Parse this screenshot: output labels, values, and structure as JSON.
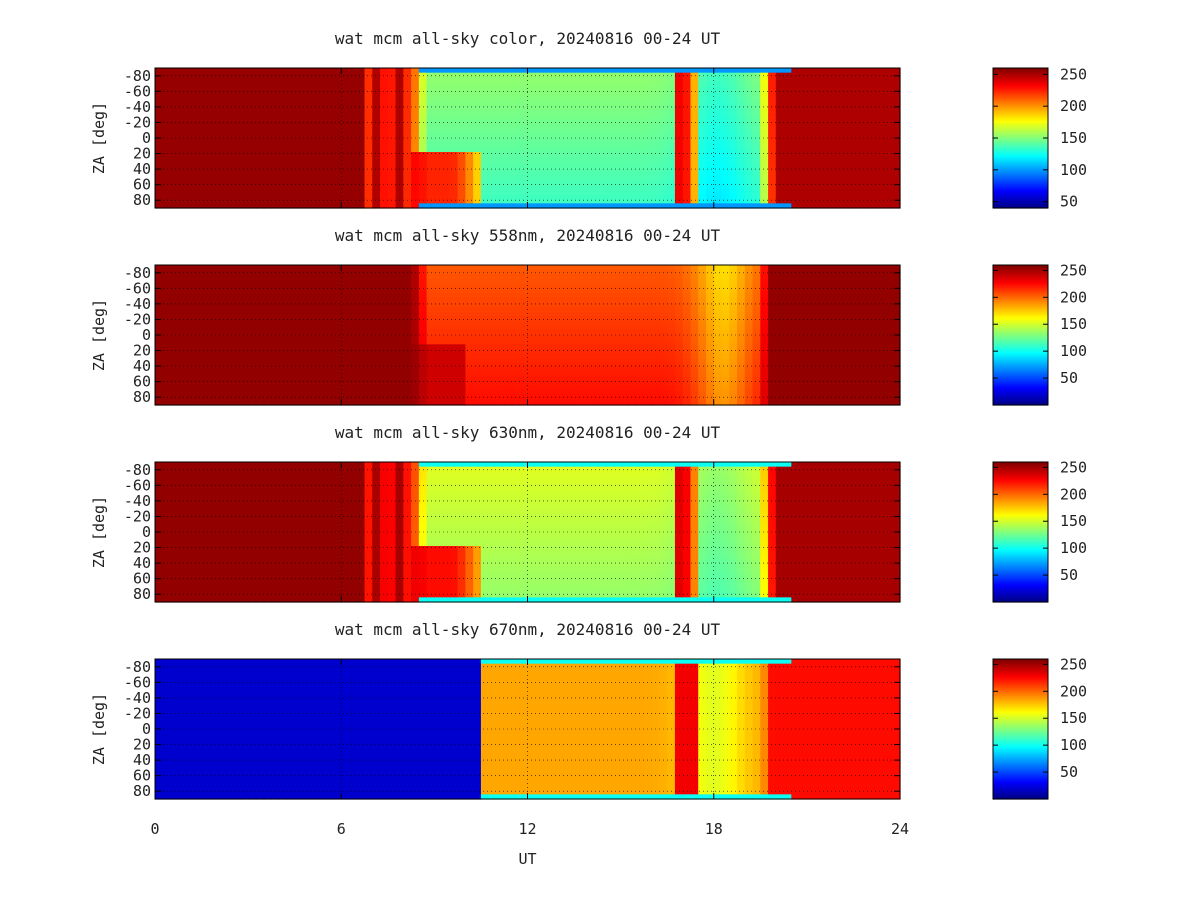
{
  "chart_data": [
    {
      "type": "heatmap",
      "title": "wat mcm all-sky color, 20240816 00-24 UT",
      "ylabel": "ZA [deg]",
      "xlim": [
        0,
        24
      ],
      "ylim": [
        -90,
        90
      ],
      "xticks": [
        "0",
        "6",
        "12",
        "18",
        "24"
      ],
      "yticks": [
        "-80",
        "-60",
        "-40",
        "-20",
        "0",
        "20",
        "40",
        "60",
        "80"
      ],
      "grid": true,
      "colorbar": {
        "range": [
          40,
          260
        ],
        "ticks": [
          "50",
          "100",
          "150",
          "200",
          "250"
        ]
      },
      "description_values": {
        "night_start_ut": 6.8,
        "day_start_ut": 8.5,
        "day_end_ut": 20.0,
        "background_night_value": 255,
        "typical_day_value": 145
      }
    },
    {
      "type": "heatmap",
      "title": "wat mcm all-sky 558nm, 20240816 00-24 UT",
      "ylabel": "ZA [deg]",
      "xlim": [
        0,
        24
      ],
      "ylim": [
        -90,
        90
      ],
      "xticks": [
        "0",
        "6",
        "12",
        "18",
        "24"
      ],
      "yticks": [
        "-80",
        "-60",
        "-40",
        "-20",
        "0",
        "20",
        "40",
        "60",
        "80"
      ],
      "grid": true,
      "colorbar": {
        "range": [
          0,
          260
        ],
        "ticks": [
          "50",
          "100",
          "150",
          "200",
          "250"
        ]
      },
      "description_values": {
        "day_start_ut": 8.5,
        "day_end_ut": 19.8,
        "background_night_value": 255,
        "typical_day_value": 215
      }
    },
    {
      "type": "heatmap",
      "title": "wat mcm all-sky 630nm, 20240816 00-24 UT",
      "ylabel": "ZA [deg]",
      "xlim": [
        0,
        24
      ],
      "ylim": [
        -90,
        90
      ],
      "xticks": [
        "0",
        "6",
        "12",
        "18",
        "24"
      ],
      "yticks": [
        "-80",
        "-60",
        "-40",
        "-20",
        "0",
        "20",
        "40",
        "60",
        "80"
      ],
      "grid": true,
      "colorbar": {
        "range": [
          0,
          260
        ],
        "ticks": [
          "50",
          "100",
          "150",
          "200",
          "250"
        ]
      },
      "description_values": {
        "night_start_ut": 6.8,
        "day_start_ut": 8.5,
        "day_end_ut": 20.0,
        "background_night_value": 255,
        "typical_day_value": 145
      }
    },
    {
      "type": "heatmap",
      "title": "wat mcm all-sky 670nm, 20240816 00-24 UT",
      "ylabel": "ZA [deg]",
      "xlabel": "UT",
      "xlim": [
        0,
        24
      ],
      "ylim": [
        -90,
        90
      ],
      "xticks": [
        "0",
        "6",
        "12",
        "18",
        "24"
      ],
      "yticks": [
        "-80",
        "-60",
        "-40",
        "-20",
        "0",
        "20",
        "40",
        "60",
        "80"
      ],
      "grid": true,
      "colorbar": {
        "range": [
          0,
          260
        ],
        "ticks": [
          "50",
          "100",
          "150",
          "200",
          "250"
        ]
      },
      "description_values": {
        "data_start_ut": 10.4,
        "day_end_ut": 19.8,
        "background_before_value": 20,
        "background_after_value": 225,
        "typical_day_value": 185
      }
    }
  ],
  "colors": {
    "jet_stops": [
      "#00007f",
      "#0000ff",
      "#007fff",
      "#00ffff",
      "#7fff7f",
      "#ffff00",
      "#ff7f00",
      "#ff0000",
      "#7f0000"
    ],
    "frame": "#000000",
    "grid": "#000000"
  }
}
